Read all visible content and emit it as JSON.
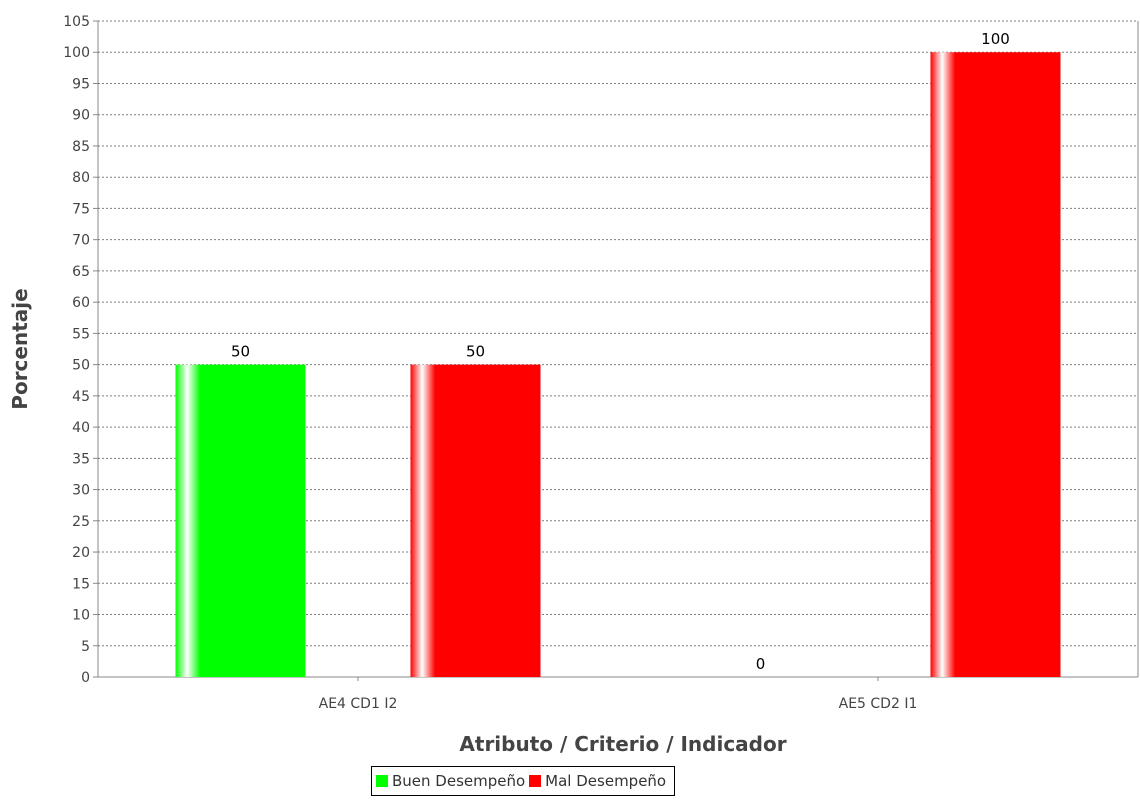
{
  "chart_data": {
    "type": "bar",
    "title": "",
    "xlabel": "Atributo / Criterio / Indicador",
    "ylabel": "Porcentaje",
    "ylim": [
      0,
      105
    ],
    "ytick_step": 5,
    "grid": true,
    "legend_position": "bottom",
    "categories": [
      "AE4 CD1 I2",
      "AE5 CD2 I1"
    ],
    "series": [
      {
        "name": "Buen Desempeño",
        "color": "#00ff00",
        "values": [
          50,
          0
        ]
      },
      {
        "name": "Mal Desempeño",
        "color": "#ff0000",
        "values": [
          50,
          100
        ]
      }
    ]
  }
}
